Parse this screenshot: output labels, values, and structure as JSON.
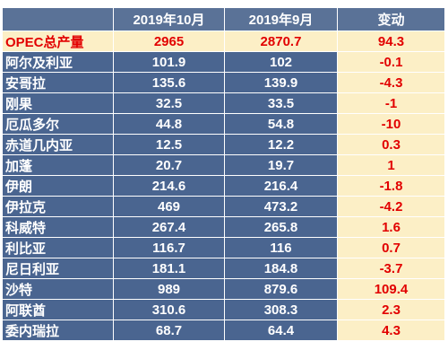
{
  "header": {
    "corner": "",
    "col_oct": "2019年10月",
    "col_sep": "2019年9月",
    "col_change": "变动"
  },
  "total": {
    "name": "OPEC总产量",
    "oct": "2965",
    "sep": "2870.7",
    "change": "94.3"
  },
  "rows": [
    {
      "name": "阿尔及利亚",
      "oct": "101.9",
      "sep": "102",
      "change": "-0.1"
    },
    {
      "name": "安哥拉",
      "oct": "135.6",
      "sep": "139.9",
      "change": "-4.3"
    },
    {
      "name": "刚果",
      "oct": "32.5",
      "sep": "33.5",
      "change": "-1"
    },
    {
      "name": "厄瓜多尔",
      "oct": "44.8",
      "sep": "54.8",
      "change": "-10"
    },
    {
      "name": "赤道几内亚",
      "oct": "12.5",
      "sep": "12.2",
      "change": "0.3"
    },
    {
      "name": "加蓬",
      "oct": "20.7",
      "sep": "19.7",
      "change": "1"
    },
    {
      "name": "伊朗",
      "oct": "214.6",
      "sep": "216.4",
      "change": "-1.8"
    },
    {
      "name": "伊拉克",
      "oct": "469",
      "sep": "473.2",
      "change": "-4.2"
    },
    {
      "name": "科威特",
      "oct": "267.4",
      "sep": "265.8",
      "change": "1.6"
    },
    {
      "name": "利比亚",
      "oct": "116.7",
      "sep": "116",
      "change": "0.7"
    },
    {
      "name": "尼日利亚",
      "oct": "181.1",
      "sep": "184.8",
      "change": "-3.7"
    },
    {
      "name": "沙特",
      "oct": "989",
      "sep": "879.6",
      "change": "109.4"
    },
    {
      "name": "阿联酋",
      "oct": "310.6",
      "sep": "308.3",
      "change": "2.3"
    },
    {
      "name": "委内瑞拉",
      "oct": "68.7",
      "sep": "64.4",
      "change": "4.3"
    }
  ],
  "colors": {
    "header_bg": "#5a7297",
    "row_bg": "#4a6590",
    "highlight_bg": "#fcefc6",
    "highlight_text": "#e20000"
  }
}
